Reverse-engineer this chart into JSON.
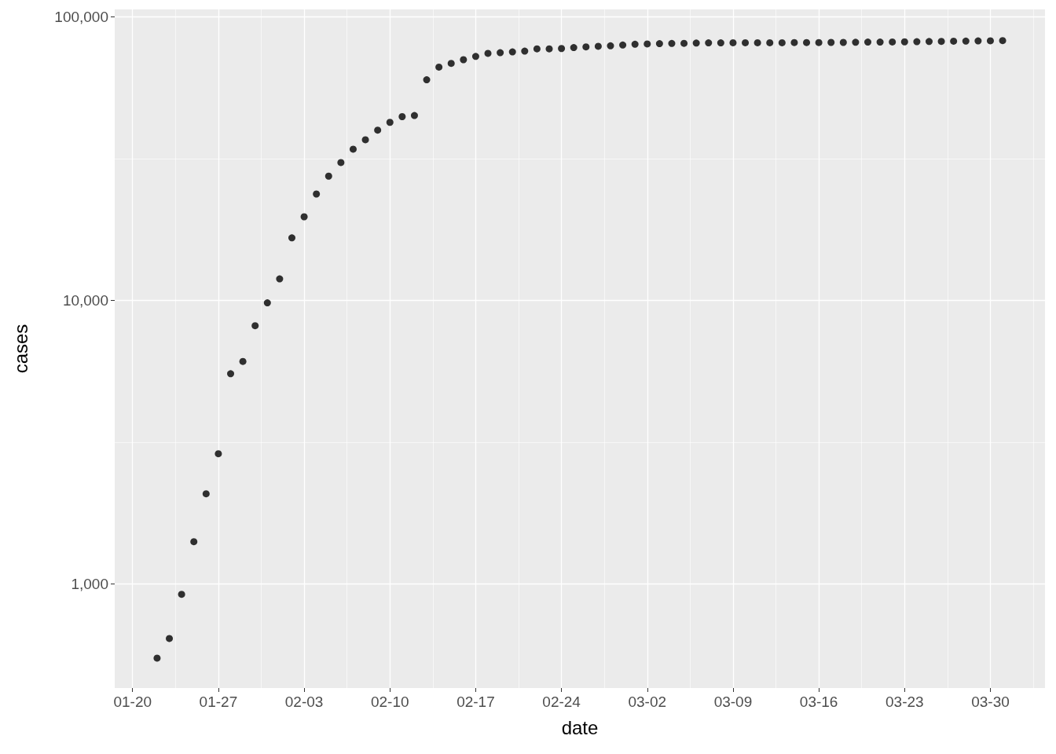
{
  "chart_data": {
    "type": "scatter",
    "xlabel": "date",
    "ylabel": "cases",
    "x": [
      "--01-22",
      "--01-23",
      "--01-24",
      "--01-25",
      "--01-26",
      "--01-27",
      "--01-28",
      "--01-29",
      "--01-30",
      "--01-31",
      "--02-01",
      "--02-02",
      "--02-03",
      "--02-04",
      "--02-05",
      "--02-06",
      "--02-07",
      "--02-08",
      "--02-09",
      "--02-10",
      "--02-11",
      "--02-12",
      "--02-13",
      "--02-14",
      "--02-15",
      "--02-16",
      "--02-17",
      "--02-18",
      "--02-19",
      "--02-20",
      "--02-21",
      "--02-22",
      "--02-23",
      "--02-24",
      "--02-25",
      "--02-26",
      "--02-27",
      "--02-28",
      "--02-29",
      "--03-01",
      "--03-02",
      "--03-03",
      "--03-04",
      "--03-05",
      "--03-06",
      "--03-07",
      "--03-08",
      "--03-09",
      "--03-10",
      "--03-11",
      "--03-12",
      "--03-13",
      "--03-14",
      "--03-15",
      "--03-16",
      "--03-17",
      "--03-18",
      "--03-19",
      "--03-20",
      "--03-21",
      "--03-22",
      "--03-23",
      "--03-24",
      "--03-25",
      "--03-26",
      "--03-27",
      "--03-28",
      "--03-29",
      "--03-30",
      "--03-31"
    ],
    "values": [
      548,
      643,
      920,
      1410,
      2080,
      2880,
      5510,
      6090,
      8140,
      9800,
      11900,
      16600,
      19700,
      23700,
      27400,
      30600,
      34100,
      36800,
      39800,
      42400,
      44400,
      44800,
      59900,
      66400,
      68400,
      70500,
      72400,
      74200,
      74600,
      75100,
      75600,
      77000,
      77000,
      77200,
      77800,
      78200,
      78600,
      78900,
      79400,
      79900,
      80100,
      80300,
      80400,
      80500,
      80700,
      80800,
      80800,
      80900,
      80900,
      80900,
      80900,
      80900,
      81000,
      81000,
      81000,
      81100,
      81100,
      81200,
      81300,
      81300,
      81400,
      81500,
      81600,
      81700,
      81800,
      81900,
      82000,
      82100,
      82200,
      82300
    ],
    "color": "#000000",
    "marker": "circle",
    "log": "y",
    "grid": true,
    "xlim": [
      "--01-18T13:00",
      "--04-03T11:00"
    ],
    "xticks": [
      {
        "value": "--01-20",
        "label": "01-20"
      },
      {
        "value": "--01-27",
        "label": "01-27"
      },
      {
        "value": "--02-03",
        "label": "02-03"
      },
      {
        "value": "--02-10",
        "label": "02-10"
      },
      {
        "value": "--02-17",
        "label": "02-17"
      },
      {
        "value": "--02-24",
        "label": "02-24"
      },
      {
        "value": "--03-02",
        "label": "03-02"
      },
      {
        "value": "--03-09",
        "label": "03-09"
      },
      {
        "value": "--03-16",
        "label": "03-16"
      },
      {
        "value": "--03-23",
        "label": "03-23"
      },
      {
        "value": "--03-30",
        "label": "03-30"
      }
    ],
    "ylim": [
      430,
      106000
    ],
    "yticks": [
      {
        "value": 1000,
        "label": "1,000"
      },
      {
        "value": 10000,
        "label": "10,000"
      },
      {
        "value": 100000,
        "label": "100,000"
      }
    ]
  }
}
